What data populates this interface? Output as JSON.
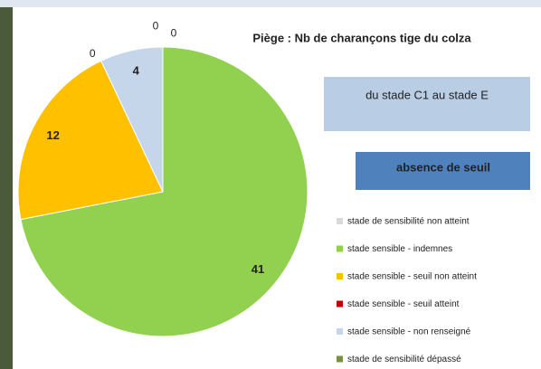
{
  "chart_data": {
    "type": "pie",
    "title": "Piège : Nb de charançons tige du colza",
    "annotations": [
      "du stade C1 au stade E",
      "absence de seuil"
    ],
    "categories": [
      "stade de sensibilité non atteint",
      "stade sensible - indemnes",
      "stade sensible - seuil non atteint",
      "stade sensible - seuil atteint",
      "stade sensible - non renseigné",
      "stade de sensibilité dépassé"
    ],
    "values": [
      0,
      41,
      12,
      0,
      4,
      0
    ],
    "colors": [
      "#d9d9d9",
      "#92d050",
      "#ffc000",
      "#c00000",
      "#c5d5ea",
      "#77933c"
    ],
    "legend": "right"
  }
}
